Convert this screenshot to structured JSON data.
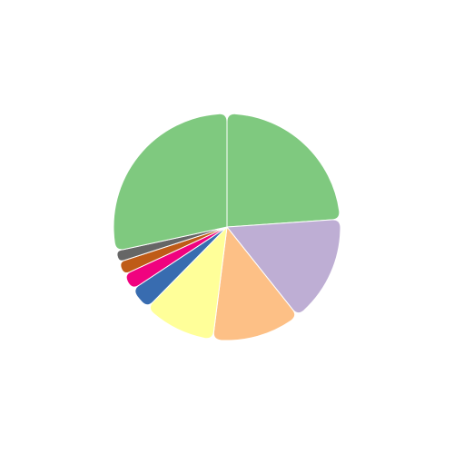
{
  "chart_data": {
    "type": "pie",
    "start_angle_deg": 0,
    "direction": "clockwise",
    "grid": false,
    "legend": "none",
    "slices": [
      {
        "value": 23.9,
        "color": "#7fc97f"
      },
      {
        "value": 15.4,
        "color": "#beaed4"
      },
      {
        "value": 12.7,
        "color": "#fdc086"
      },
      {
        "value": 10.4,
        "color": "#ffff99"
      },
      {
        "value": 3.3,
        "color": "#386cb0"
      },
      {
        "value": 2.4,
        "color": "#f0027f"
      },
      {
        "value": 1.9,
        "color": "#bf5b17"
      },
      {
        "value": 1.6,
        "color": "#666666"
      },
      {
        "value": 28.4,
        "color": "#7fc97f"
      }
    ]
  }
}
